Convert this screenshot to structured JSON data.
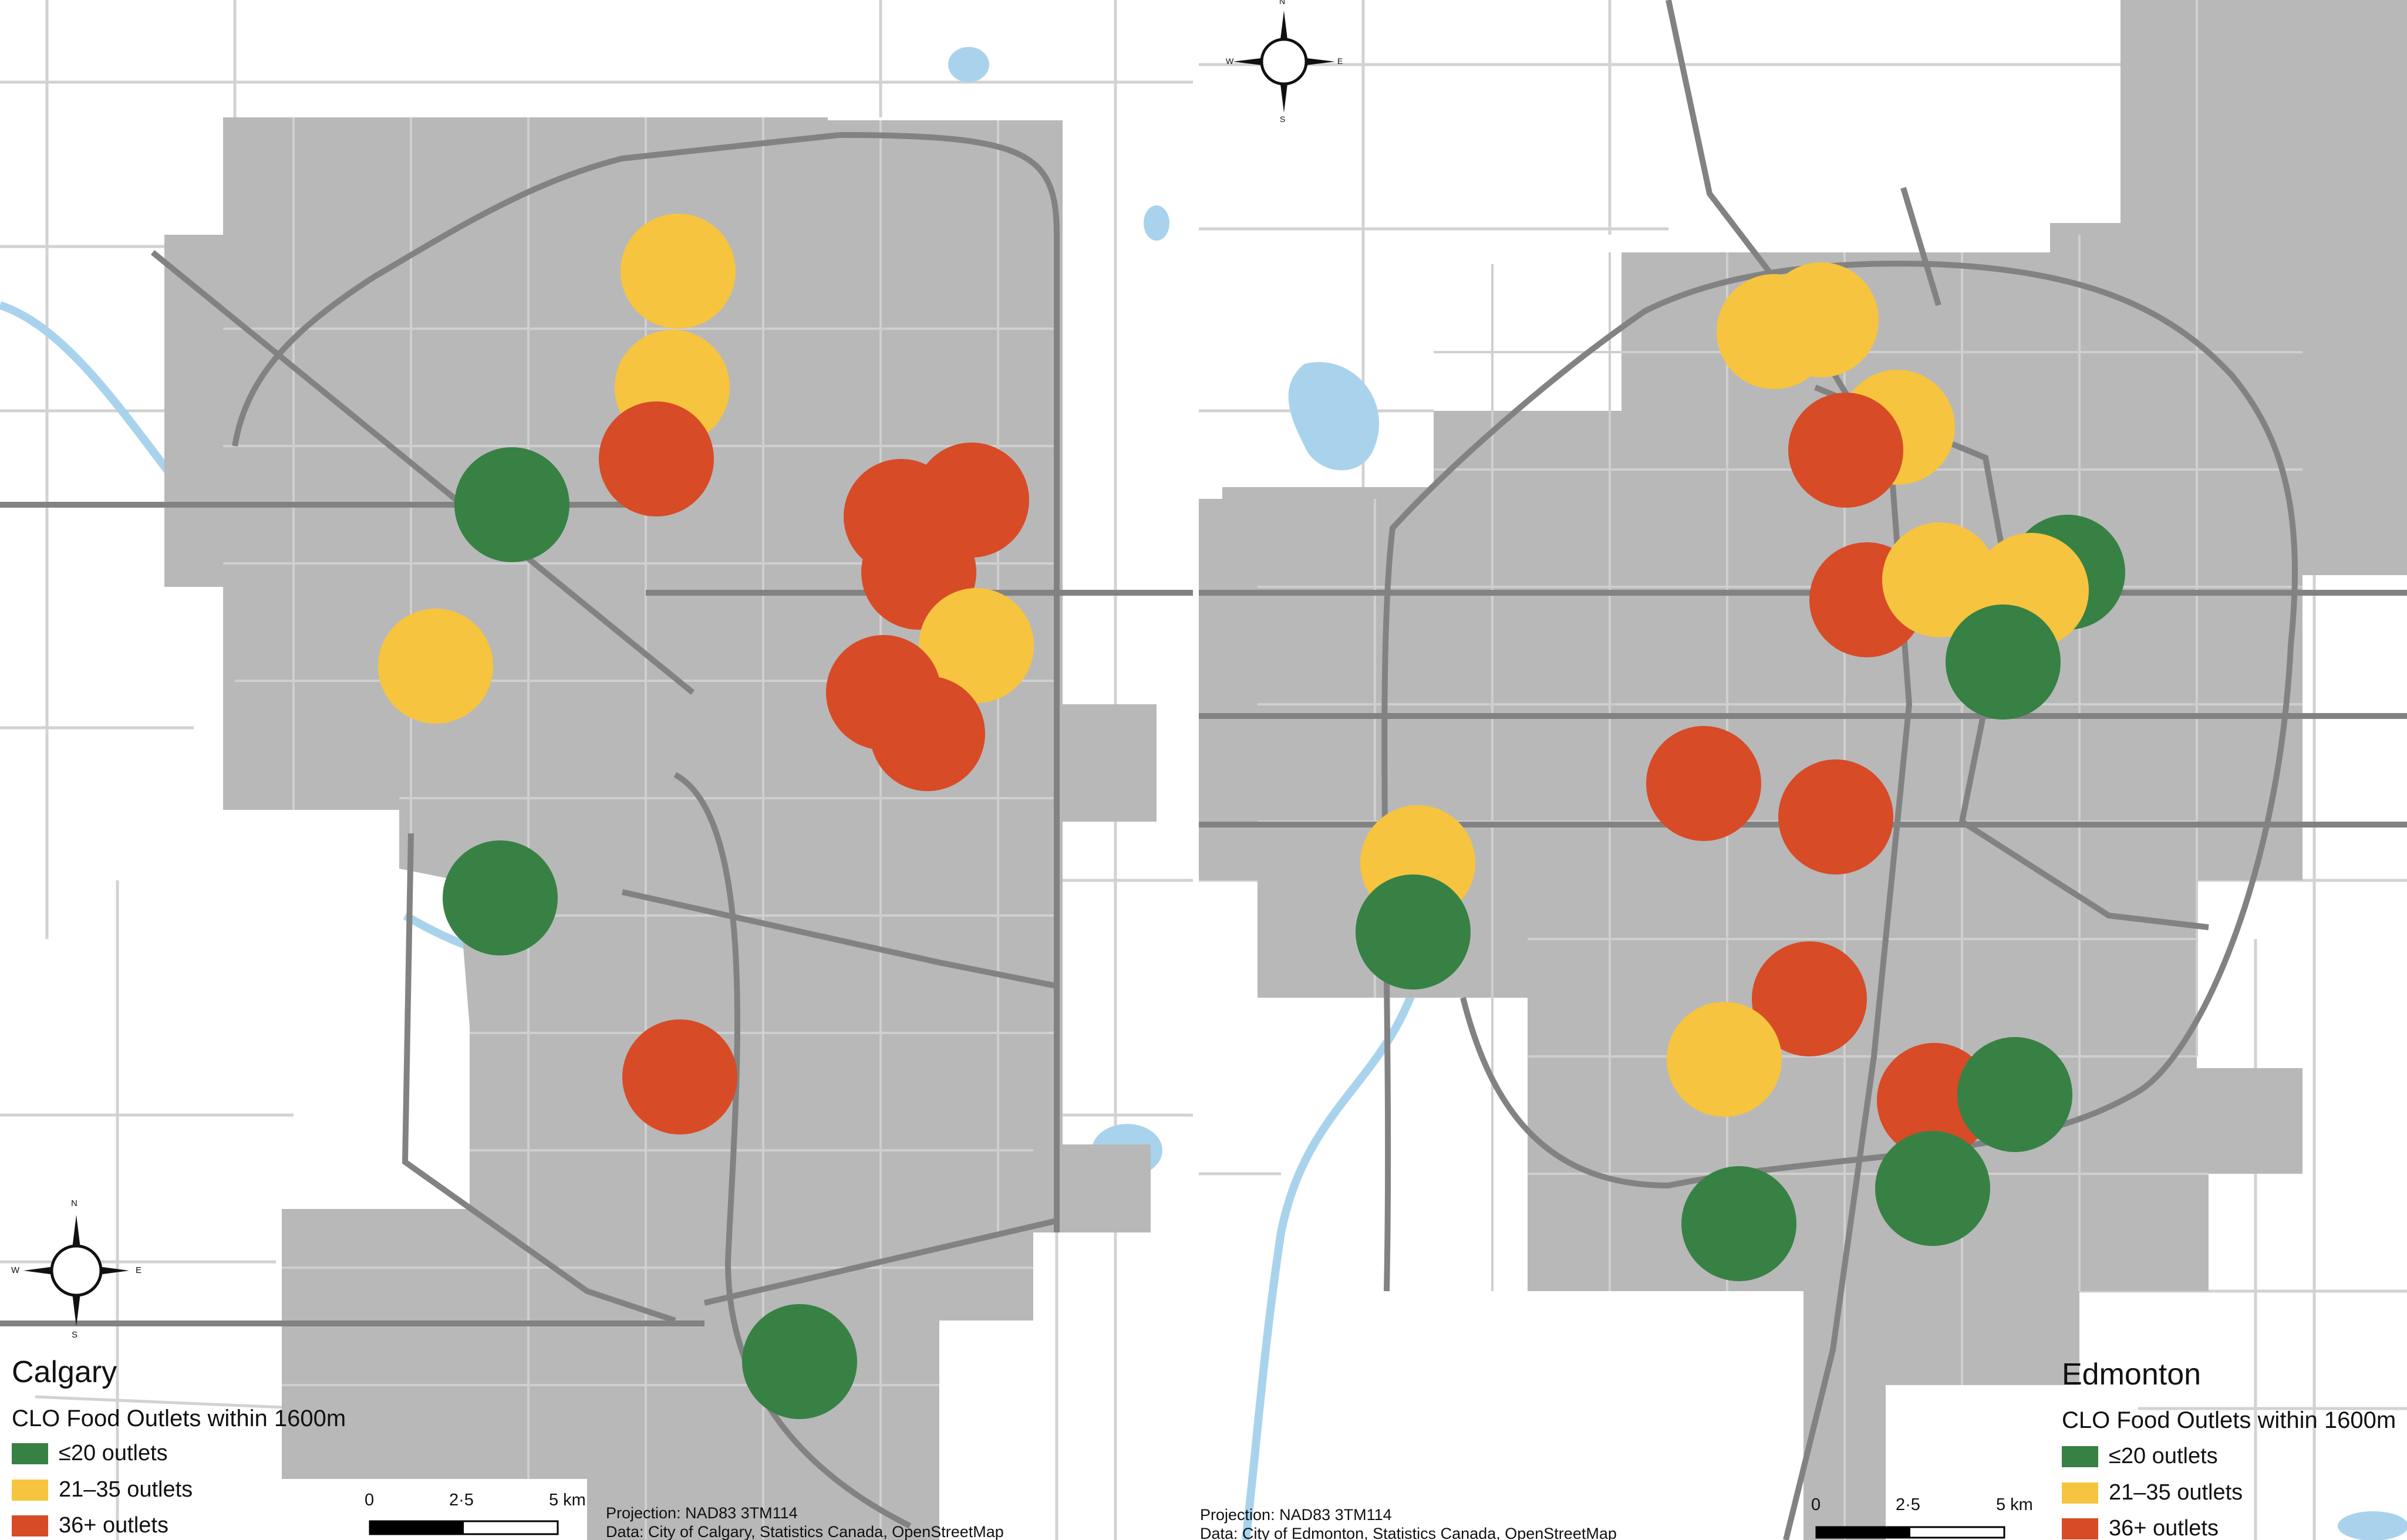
{
  "colors": {
    "city": "#b8b8b8",
    "road": "#828282",
    "road_minor": "#d2d2d2",
    "water": "#a9d3ec",
    "low": "#378145",
    "mid": "#f6c43e",
    "high": "#d74b27"
  },
  "calgary": {
    "title": "Calgary",
    "legend_heading": "CLO Food Outlets within 1600m",
    "legend": [
      {
        "label": "≤20 outlets",
        "category": "low"
      },
      {
        "label": "21–35 outlets",
        "category": "mid"
      },
      {
        "label": "36+ outlets",
        "category": "high"
      }
    ],
    "projection": "Projection: NAD83 3TM114",
    "source": "Data: City of Calgary, Statistics Canada, OpenStreetMap",
    "scale": {
      "ticks": [
        "0",
        "2·5",
        "5 km"
      ]
    },
    "compass": {
      "n": "N",
      "s": "S",
      "e": "E",
      "w": "W"
    }
  },
  "edmonton": {
    "title": "Edmonton",
    "legend_heading": "CLO Food Outlets within 1600m",
    "legend": [
      {
        "label": "≤20 outlets",
        "category": "low"
      },
      {
        "label": "21–35 outlets",
        "category": "mid"
      },
      {
        "label": "36+ outlets",
        "category": "high"
      }
    ],
    "projection": "Projection: NAD83 3TM114",
    "source": "Data: City of Edmonton, Statistics Canada, OpenStreetMap",
    "scale": {
      "ticks": [
        "0",
        "2·5",
        "5 km"
      ]
    },
    "compass": {
      "n": "N",
      "s": "S",
      "e": "E",
      "w": "W"
    }
  }
}
